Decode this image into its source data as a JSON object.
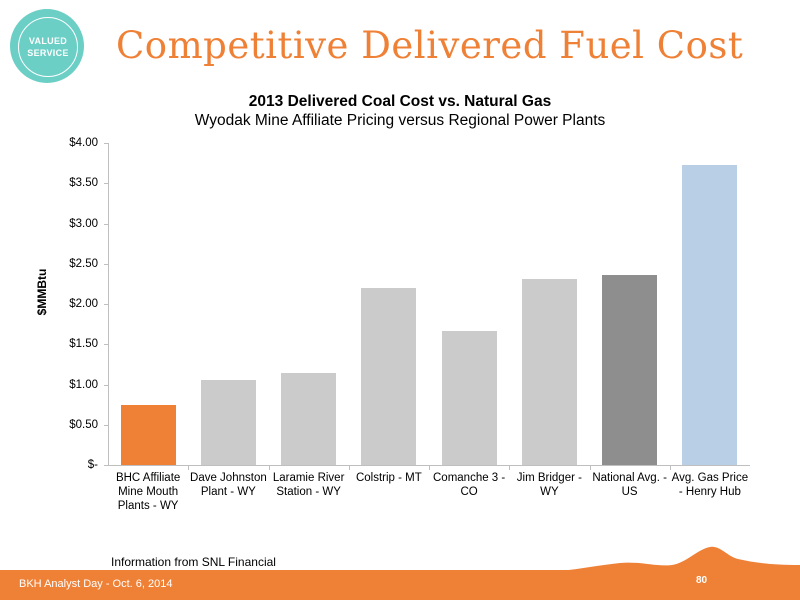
{
  "badge": {
    "line1": "VALUED",
    "line2": "SERVICE"
  },
  "slide": {
    "title": "Competitive Delivered Fuel Cost"
  },
  "source_note": "Information from SNL Financial",
  "footer": {
    "text": "BKH Analyst Day - Oct. 6, 2014",
    "page": "80"
  },
  "colors": {
    "accent": "#ef8137",
    "teal": "#6ccfc6",
    "coal_bars": "#cbcbcb",
    "national_avg": "#8e8e8e",
    "gas_price": "#b9cfe6"
  },
  "chart_data": {
    "type": "bar",
    "title": "2013 Delivered Coal Cost vs. Natural Gas",
    "subtitle": "Wyodak Mine Affiliate Pricing versus Regional Power Plants",
    "xlabel": "",
    "ylabel": "$MMBtu",
    "ylim": [
      0,
      4
    ],
    "grid": false,
    "yticks": [
      {
        "value": 4.0,
        "label": "$4.00"
      },
      {
        "value": 3.5,
        "label": "$3.50"
      },
      {
        "value": 3.0,
        "label": "$3.00"
      },
      {
        "value": 2.5,
        "label": "$2.50"
      },
      {
        "value": 2.0,
        "label": "$2.00"
      },
      {
        "value": 1.5,
        "label": "$1.50"
      },
      {
        "value": 1.0,
        "label": "$1.00"
      },
      {
        "value": 0.5,
        "label": "$0.50"
      },
      {
        "value": 0.0,
        "label": "$-"
      }
    ],
    "categories": [
      [
        "BHC Affiliate",
        "Mine Mouth",
        "Plants - WY"
      ],
      [
        "Dave Johnston",
        "Plant - WY"
      ],
      [
        "Laramie River",
        "Station - WY"
      ],
      [
        "Colstrip - MT"
      ],
      [
        "Comanche 3 -",
        "CO"
      ],
      [
        "Jim Bridger -",
        "WY"
      ],
      [
        "National Avg. -",
        "US"
      ],
      [
        "Avg. Gas Price",
        "- Henry Hub"
      ]
    ],
    "values": [
      0.75,
      1.06,
      1.14,
      2.2,
      1.67,
      2.31,
      2.36,
      3.73
    ],
    "bar_colors": [
      "#ef8137",
      "#cbcbcb",
      "#cbcbcb",
      "#cbcbcb",
      "#cbcbcb",
      "#cbcbcb",
      "#8e8e8e",
      "#b9cfe6"
    ]
  }
}
